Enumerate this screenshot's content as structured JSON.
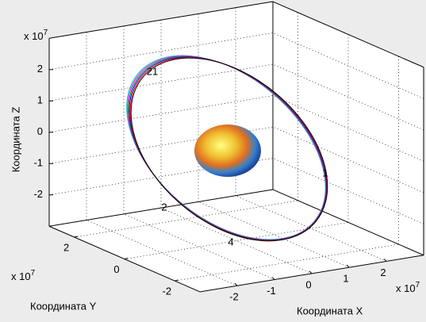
{
  "chart_data": {
    "type": "orbit3d",
    "xlabel": "Координата X",
    "ylabel": "Координата Y",
    "zlabel": "Координата Z",
    "exponent": {
      "base": "x 10",
      "power": "7"
    },
    "xlim": [
      -3,
      3
    ],
    "ylim": [
      -3,
      3
    ],
    "zlim": [
      -3,
      3
    ],
    "xticks": [
      -2,
      -1,
      0,
      1,
      2
    ],
    "yticks": [
      -2,
      0,
      2
    ],
    "zticks": [
      -2,
      -1,
      0,
      1,
      2
    ],
    "grid": true,
    "series": [
      {
        "color": "#00c8c8"
      },
      {
        "color": "#ff00ff"
      },
      {
        "color": "#00a000"
      },
      {
        "color": "#0000ff"
      },
      {
        "color": "#ff0000"
      },
      {
        "color": "#000000"
      }
    ],
    "annotations": [
      "21",
      "1",
      "2",
      "4"
    ]
  }
}
